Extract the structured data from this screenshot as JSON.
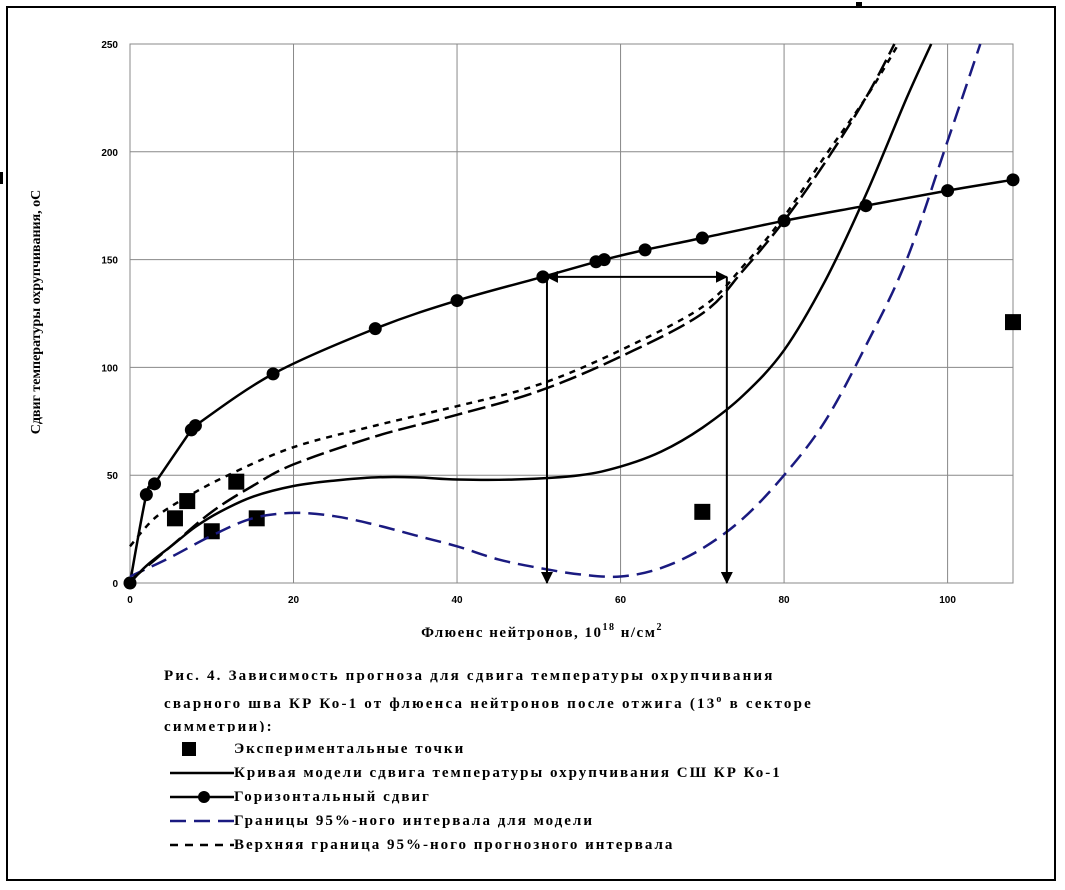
{
  "caption": {
    "line1": "Рис. 4. Зависимость прогноза для сдвига температуры охрупчивания",
    "line2_pre": "сварного шва КР Ко-1 от флюенса нейтронов после отжига (13",
    "line2_sup": "o",
    "line2_post": " в секторе",
    "line3": "симметрии):"
  },
  "legend": [
    {
      "label": "Экспериментальные точки",
      "symbol": "square"
    },
    {
      "label": "Кривая модели сдвига температуры охрупчивания СШ КР Ко-1",
      "symbol": "solid"
    },
    {
      "label": "Горизонтальный сдвиг",
      "symbol": "solid-circle"
    },
    {
      "label": "Границы 95%-ного интервала для модели",
      "symbol": "blue-dash"
    },
    {
      "label": "Верхняя граница 95%-ного прогнозного интервала",
      "symbol": "short-dash"
    }
  ],
  "chart_data": {
    "type": "line",
    "title": "",
    "xlabel": "Флюенс нейтронов, 10",
    "xlabel_sup": "18",
    "xlabel_unit": " н/см",
    "xlabel_unit_sup": "2",
    "ylabel": "Сдвиг температуры охрупчивания, оС",
    "xlim": [
      0,
      108
    ],
    "ylim": [
      0,
      250
    ],
    "xticks": [
      0,
      20,
      40,
      60,
      80,
      100
    ],
    "yticks": [
      0,
      50,
      100,
      150,
      200,
      250
    ],
    "grid": true,
    "colors": {
      "black": "#000000",
      "blue": "#1a1a80"
    },
    "series": [
      {
        "name": "Экспериментальные точки",
        "kind": "points",
        "points": [
          [
            5.5,
            30
          ],
          [
            7,
            38
          ],
          [
            10,
            24
          ],
          [
            13,
            47
          ],
          [
            15.5,
            30
          ],
          [
            70,
            33
          ],
          [
            108,
            121
          ]
        ]
      },
      {
        "name": "Кривая модели сдвига температуры охрупчивания СШ КР Ко-1",
        "kind": "solid",
        "points": [
          [
            0,
            0
          ],
          [
            2,
            8
          ],
          [
            5,
            17
          ],
          [
            8,
            26
          ],
          [
            11,
            33
          ],
          [
            15,
            40
          ],
          [
            20,
            45
          ],
          [
            25,
            47.5
          ],
          [
            30,
            49
          ],
          [
            35,
            49
          ],
          [
            40,
            48
          ],
          [
            47,
            48
          ],
          [
            55,
            50
          ],
          [
            60,
            54
          ],
          [
            65,
            61
          ],
          [
            70,
            72
          ],
          [
            75,
            87
          ],
          [
            80,
            108
          ],
          [
            85,
            140
          ],
          [
            90,
            180
          ],
          [
            95,
            225
          ],
          [
            98,
            250
          ]
        ]
      },
      {
        "name": "Горизонтальный сдвиг",
        "kind": "solid-circle",
        "points": [
          [
            0,
            0
          ],
          [
            2,
            41
          ],
          [
            3,
            46
          ],
          [
            7.5,
            71
          ],
          [
            8,
            73
          ],
          [
            17.5,
            97
          ],
          [
            30,
            118
          ],
          [
            40,
            131
          ],
          [
            50.5,
            142
          ],
          [
            57,
            149
          ],
          [
            58,
            150
          ],
          [
            63,
            154.5
          ],
          [
            70,
            160
          ],
          [
            80,
            168
          ],
          [
            90,
            175
          ],
          [
            100,
            182
          ],
          [
            108,
            187
          ]
        ]
      },
      {
        "name": "Границы 95%-ного интервала для модели",
        "kind": "blue-dash",
        "points": [
          [
            0,
            3
          ],
          [
            5,
            12
          ],
          [
            10,
            22
          ],
          [
            15,
            30
          ],
          [
            20,
            32.5
          ],
          [
            25,
            31
          ],
          [
            30,
            27
          ],
          [
            35,
            22
          ],
          [
            40,
            17
          ],
          [
            45,
            11
          ],
          [
            50,
            7
          ],
          [
            55,
            4
          ],
          [
            60,
            3
          ],
          [
            65,
            7
          ],
          [
            70,
            16
          ],
          [
            75,
            30
          ],
          [
            80,
            50
          ],
          [
            85,
            75
          ],
          [
            90,
            110
          ],
          [
            95,
            150
          ],
          [
            100,
            205
          ],
          [
            104,
            250
          ]
        ]
      },
      {
        "name": "",
        "kind": "black-dash",
        "points": [
          [
            0,
            1
          ],
          [
            5,
            17
          ],
          [
            10,
            33
          ],
          [
            15,
            45
          ],
          [
            20,
            55
          ],
          [
            30,
            68
          ],
          [
            40,
            78
          ],
          [
            50,
            89
          ],
          [
            60,
            105
          ],
          [
            70,
            125
          ],
          [
            75,
            145
          ],
          [
            80,
            168
          ],
          [
            85,
            195
          ],
          [
            90,
            225
          ],
          [
            93.5,
            250
          ]
        ]
      },
      {
        "name": "Верхняя граница 95%-ного прогнозного интервала",
        "kind": "short-dash",
        "points": [
          [
            0,
            17
          ],
          [
            3,
            30
          ],
          [
            7,
            40
          ],
          [
            12,
            50
          ],
          [
            20,
            63
          ],
          [
            30,
            73
          ],
          [
            40,
            82
          ],
          [
            50,
            92
          ],
          [
            60,
            108
          ],
          [
            70,
            128
          ],
          [
            75,
            147
          ],
          [
            80,
            170
          ],
          [
            85,
            198
          ],
          [
            90,
            225
          ],
          [
            94,
            250
          ]
        ]
      }
    ],
    "arrows": [
      {
        "from": [
          51,
          142
        ],
        "to": [
          73,
          142
        ],
        "kind": "double"
      },
      {
        "from": [
          51,
          142
        ],
        "to": [
          51,
          0
        ],
        "kind": "single"
      },
      {
        "from": [
          73,
          142
        ],
        "to": [
          73,
          0
        ],
        "kind": "single"
      }
    ]
  }
}
